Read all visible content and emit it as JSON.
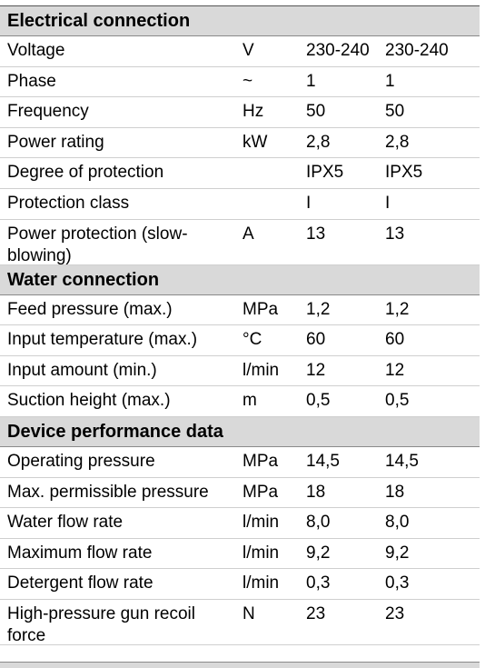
{
  "sections": [
    {
      "title": "Electrical connection",
      "rows": [
        {
          "label": "Voltage",
          "unit": "V",
          "v1": "230-240",
          "v2": "230-240"
        },
        {
          "label": "Phase",
          "unit": "~",
          "v1": "1",
          "v2": "1"
        },
        {
          "label": "Frequency",
          "unit": "Hz",
          "v1": "50",
          "v2": "50"
        },
        {
          "label": "Power rating",
          "unit": "kW",
          "v1": "2,8",
          "v2": "2,8"
        },
        {
          "label": "Degree of protection",
          "unit": "",
          "v1": "IPX5",
          "v2": "IPX5"
        },
        {
          "label": "Protection class",
          "unit": "",
          "v1": "I",
          "v2": "I"
        },
        {
          "label": "Power protection (slow-blowing)",
          "unit": "A",
          "v1": "13",
          "v2": "13"
        }
      ]
    },
    {
      "title": "Water connection",
      "rows": [
        {
          "label": "Feed pressure (max.)",
          "unit": "MPa",
          "v1": "1,2",
          "v2": "1,2"
        },
        {
          "label": "Input temperature (max.)",
          "unit": "°C",
          "v1": "60",
          "v2": "60"
        },
        {
          "label": "Input amount (min.)",
          "unit": "l/min",
          "v1": "12",
          "v2": "12"
        },
        {
          "label": "Suction height (max.)",
          "unit": "m",
          "v1": "0,5",
          "v2": "0,5"
        }
      ]
    },
    {
      "title": "Device performance data",
      "rows": [
        {
          "label": "Operating pressure",
          "unit": "MPa",
          "v1": "14,5",
          "v2": "14,5"
        },
        {
          "label": "Max. permissible pressure",
          "unit": "MPa",
          "v1": "18",
          "v2": "18"
        },
        {
          "label": "Water flow rate",
          "unit": "l/min",
          "v1": "8,0",
          "v2": "8,0"
        },
        {
          "label": "Maximum flow rate",
          "unit": "l/min",
          "v1": "9,2",
          "v2": "9,2"
        },
        {
          "label": "Detergent flow rate",
          "unit": "l/min",
          "v1": "0,3",
          "v2": "0,3"
        },
        {
          "label": "High-pressure gun recoil force",
          "unit": "N",
          "v1": "23",
          "v2": "23"
        }
      ]
    }
  ]
}
